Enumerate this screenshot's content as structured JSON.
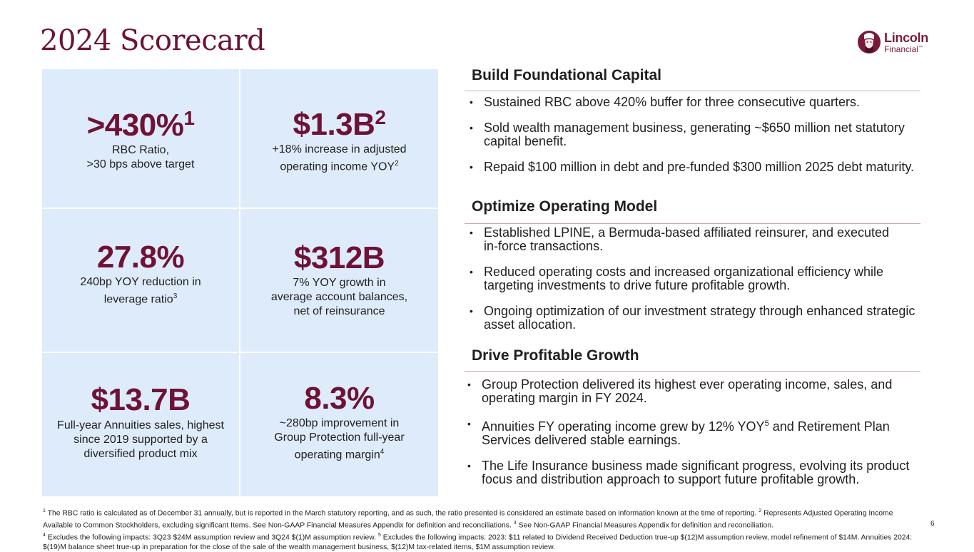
{
  "page": {
    "title": "2024 Scorecard",
    "number": "6"
  },
  "logo": {
    "line1": "Lincoln",
    "line2": "Financial",
    "tm": "™",
    "icon": "lincoln-portrait-icon",
    "color": "#7a1a3a"
  },
  "colors": {
    "accent": "#6e1236",
    "tile_bg": "#deebfa"
  },
  "metrics": [
    {
      "value": ">430%",
      "sup": "1",
      "desc1": "RBC Ratio,",
      "desc2": ">30 bps above target"
    },
    {
      "value": "$1.3B",
      "sup": "2",
      "desc1": "+18% increase in adjusted",
      "desc2": "operating income YOY",
      "desc2_sup": "2"
    },
    {
      "value": "27.8%",
      "desc1": "240bp YOY reduction in",
      "desc2": "leverage ratio",
      "desc2_sup": "3"
    },
    {
      "value": "$312B",
      "desc1": "7% YOY growth in",
      "desc2": "average account balances,",
      "desc3": "net of reinsurance"
    },
    {
      "value": "$13.7B",
      "desc1": "Full-year Annuities sales, highest",
      "desc2": "since 2019 supported by a",
      "desc3": "diversified product mix"
    },
    {
      "value": "8.3%",
      "desc1": "~280bp improvement in",
      "desc2": "Group Protection full-year",
      "desc3": "operating margin",
      "desc3_sup": "4"
    }
  ],
  "sections": [
    {
      "heading": "Build Foundational Capital",
      "bullets": [
        "Sustained RBC above 420% buffer for three consecutive quarters.",
        "Sold wealth management business, generating ~$650 million net statutory capital benefit.",
        "Repaid $100 million in debt and pre-funded $300 million 2025 debt maturity."
      ]
    },
    {
      "heading": "Optimize Operating Model",
      "bullets": [
        "Established LPINE, a Bermuda-based affiliated reinsurer, and executed in-force transactions.",
        "Reduced operating costs and increased organizational efficiency while targeting investments to drive future profitable growth.",
        "Ongoing optimization of our investment strategy through enhanced strategic asset allocation."
      ]
    },
    {
      "heading": "Drive Profitable Growth",
      "bullets": [
        "Group Protection delivered its highest ever operating income, sales, and operating margin in FY 2024.",
        "Annuities FY operating income grew by 12% YOY",
        "The Life Insurance business made significant progress, evolving its product focus and distribution approach to support future profitable growth."
      ],
      "bullet2_sup": "5",
      "bullet2_tail": " and Retirement Plan Services delivered stable earnings."
    }
  ],
  "footnotes": {
    "n1": "1",
    "t1": " The RBC ratio is calculated as of December 31 annually, but is reported in the March statutory reporting, and as such, the ratio presented is considered an estimate based on information known at the time of reporting.  ",
    "n2": "2",
    "t2": " Represents Adjusted Operating Income Available to Common Stockholders, excluding significant Items. See Non-GAAP Financial Measures Appendix for definition and reconciliations.  ",
    "n3": "3",
    "t3": " See Non-GAAP Financial Measures Appendix for definition and reconciliation.",
    "n4": "4",
    "t4": "  Excludes the following impacts: 3Q23 $24M assumption review and 3Q24 $(1)M assumption review.  ",
    "n5": "5",
    "t5": " Excludes the following impacts: 2023: $11 related to Dividend Received Deduction true-up $(12)M assumption review, model refinement of $14M. Annuities 2024: $(19)M balance sheet true-up in preparation for the close of the sale of the wealth management business, $(12)M tax-related items, $1M assumption review."
  }
}
